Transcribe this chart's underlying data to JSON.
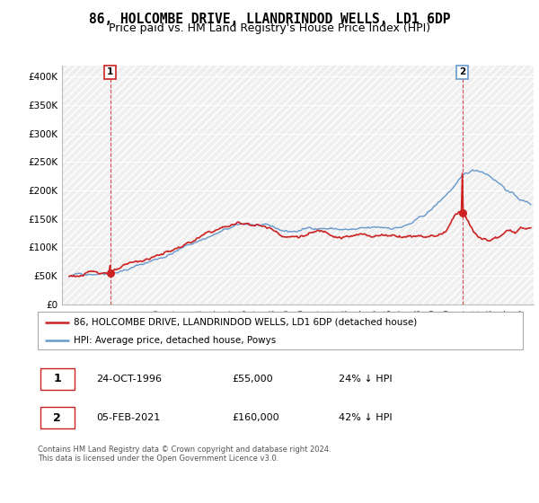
{
  "title": "86, HOLCOMBE DRIVE, LLANDRINDOD WELLS, LD1 6DP",
  "subtitle": "Price paid vs. HM Land Registry's House Price Index (HPI)",
  "ylim": [
    0,
    420000
  ],
  "yticks": [
    0,
    50000,
    100000,
    150000,
    200000,
    250000,
    300000,
    350000,
    400000
  ],
  "ytick_labels": [
    "£0",
    "£50K",
    "£100K",
    "£150K",
    "£200K",
    "£250K",
    "£300K",
    "£350K",
    "£400K"
  ],
  "xlim_start": 1993.5,
  "xlim_end": 2026.0,
  "hpi_color": "#6699cc",
  "price_color": "#cc2222",
  "sale1_x": 1996.82,
  "sale1_y": 55000,
  "sale1_label": "1",
  "sale1_border_color": "#cc2222",
  "sale2_x": 2021.09,
  "sale2_y": 160000,
  "sale2_label": "2",
  "sale2_border_color": "#6699cc",
  "legend_red_label": "86, HOLCOMBE DRIVE, LLANDRINDOD WELLS, LD1 6DP (detached house)",
  "legend_blue_label": "HPI: Average price, detached house, Powys",
  "annotation1_date": "24-OCT-1996",
  "annotation1_price": "£55,000",
  "annotation1_hpi": "24% ↓ HPI",
  "annotation1_border": "#cc2222",
  "annotation2_date": "05-FEB-2021",
  "annotation2_price": "£160,000",
  "annotation2_hpi": "42% ↓ HPI",
  "annotation2_border": "#cc2222",
  "footer": "Contains HM Land Registry data © Crown copyright and database right 2024.\nThis data is licensed under the Open Government Licence v3.0.",
  "title_fontsize": 10.5,
  "subtitle_fontsize": 9,
  "tick_fontsize": 7.5,
  "legend_fontsize": 7.5,
  "ann_fontsize": 8,
  "footer_fontsize": 6
}
